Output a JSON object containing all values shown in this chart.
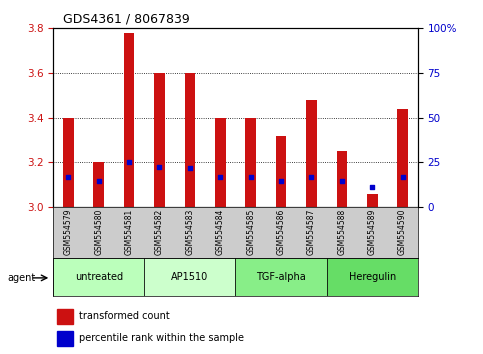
{
  "title": "GDS4361 / 8067839",
  "samples": [
    "GSM554579",
    "GSM554580",
    "GSM554581",
    "GSM554582",
    "GSM554583",
    "GSM554584",
    "GSM554585",
    "GSM554586",
    "GSM554587",
    "GSM554588",
    "GSM554589",
    "GSM554590"
  ],
  "red_values": [
    3.4,
    3.2,
    3.78,
    3.6,
    3.6,
    3.4,
    3.4,
    3.32,
    3.48,
    3.25,
    3.06,
    3.44
  ],
  "blue_values": [
    3.135,
    3.115,
    3.2,
    3.18,
    3.175,
    3.135,
    3.135,
    3.115,
    3.135,
    3.115,
    3.09,
    3.135
  ],
  "ymin": 3.0,
  "ymax": 3.8,
  "yticks_left": [
    3.0,
    3.2,
    3.4,
    3.6,
    3.8
  ],
  "yticks_right_vals": [
    0,
    25,
    50,
    75,
    100
  ],
  "yticks_right_labels": [
    "0",
    "25",
    "50",
    "75",
    "100%"
  ],
  "bar_color": "#cc1111",
  "dot_color": "#0000cc",
  "bar_width": 0.35,
  "agents": [
    {
      "label": "untreated",
      "start": 0,
      "end": 2,
      "color": "#bbffbb"
    },
    {
      "label": "AP1510",
      "start": 3,
      "end": 5,
      "color": "#ccffcc"
    },
    {
      "label": "TGF-alpha",
      "start": 6,
      "end": 8,
      "color": "#88ee88"
    },
    {
      "label": "Heregulin",
      "start": 9,
      "end": 11,
      "color": "#66dd66"
    }
  ],
  "legend_red": "transformed count",
  "legend_blue": "percentile rank within the sample",
  "title_color": "#000000",
  "left_tick_color": "#cc1111",
  "right_tick_color": "#0000cc",
  "sample_bg": "#cccccc",
  "grid_yticks": [
    3.2,
    3.4,
    3.6,
    3.8
  ]
}
